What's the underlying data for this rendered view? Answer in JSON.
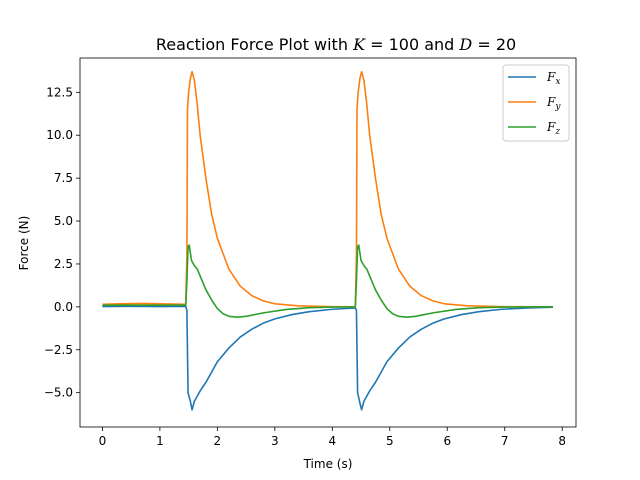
{
  "chart_data": {
    "type": "line",
    "title": "Reaction Force Plot with K = 100 and D = 20",
    "title_parts": {
      "prefix": "Reaction Force Plot with ",
      "k_sym": "K",
      "k_val": " = 100 and ",
      "d_sym": "D",
      "d_val": " = 20"
    },
    "xlabel": "Time (s)",
    "ylabel": "Force (N)",
    "xlim": [
      -0.39,
      8.24
    ],
    "ylim": [
      -7.0,
      14.5
    ],
    "xticks": [
      0,
      1,
      2,
      3,
      4,
      5,
      6,
      7,
      8
    ],
    "xtick_labels": [
      "0",
      "1",
      "2",
      "3",
      "4",
      "5",
      "6",
      "7",
      "8"
    ],
    "yticks": [
      -5.0,
      -2.5,
      0.0,
      2.5,
      5.0,
      7.5,
      10.0,
      12.5
    ],
    "ytick_labels": [
      "−5.0",
      "−2.5",
      "0.0",
      "2.5",
      "5.0",
      "7.5",
      "10.0",
      "12.5"
    ],
    "grid": false,
    "legend_position": "top-right",
    "series": [
      {
        "name": "Fx",
        "label_main": "F",
        "label_sub": "x",
        "color": "#1f77b4",
        "points": [
          [
            0,
            0.02
          ],
          [
            0.5,
            0.03
          ],
          [
            1.0,
            0.02
          ],
          [
            1.45,
            0.03
          ],
          [
            1.47,
            -0.2
          ],
          [
            1.49,
            -5.0
          ],
          [
            1.53,
            -5.5
          ],
          [
            1.56,
            -6.0
          ],
          [
            1.6,
            -5.5
          ],
          [
            1.65,
            -5.2
          ],
          [
            1.7,
            -4.9
          ],
          [
            1.8,
            -4.4
          ],
          [
            1.9,
            -3.8
          ],
          [
            2.0,
            -3.2
          ],
          [
            2.2,
            -2.4
          ],
          [
            2.4,
            -1.75
          ],
          [
            2.6,
            -1.3
          ],
          [
            2.8,
            -0.95
          ],
          [
            3.0,
            -0.7
          ],
          [
            3.3,
            -0.45
          ],
          [
            3.6,
            -0.28
          ],
          [
            4.0,
            -0.14
          ],
          [
            4.4,
            -0.06
          ],
          [
            4.42,
            -0.2
          ],
          [
            4.44,
            -5.0
          ],
          [
            4.48,
            -5.6
          ],
          [
            4.51,
            -6.0
          ],
          [
            4.55,
            -5.5
          ],
          [
            4.6,
            -5.2
          ],
          [
            4.65,
            -4.9
          ],
          [
            4.75,
            -4.4
          ],
          [
            4.85,
            -3.8
          ],
          [
            4.95,
            -3.2
          ],
          [
            5.15,
            -2.4
          ],
          [
            5.35,
            -1.75
          ],
          [
            5.55,
            -1.3
          ],
          [
            5.75,
            -0.95
          ],
          [
            5.95,
            -0.7
          ],
          [
            6.25,
            -0.45
          ],
          [
            6.55,
            -0.28
          ],
          [
            6.95,
            -0.14
          ],
          [
            7.4,
            -0.06
          ],
          [
            7.84,
            -0.02
          ]
        ]
      },
      {
        "name": "Fy",
        "label_main": "F",
        "label_sub": "y",
        "color": "#ff7f0e",
        "points": [
          [
            0,
            0.15
          ],
          [
            0.3,
            0.18
          ],
          [
            0.7,
            0.2
          ],
          [
            1.0,
            0.18
          ],
          [
            1.45,
            0.15
          ],
          [
            1.47,
            3.0
          ],
          [
            1.48,
            11.5
          ],
          [
            1.5,
            12.5
          ],
          [
            1.53,
            13.3
          ],
          [
            1.56,
            13.7
          ],
          [
            1.6,
            13.2
          ],
          [
            1.65,
            11.8
          ],
          [
            1.7,
            10.0
          ],
          [
            1.8,
            7.5
          ],
          [
            1.9,
            5.4
          ],
          [
            2.0,
            4.0
          ],
          [
            2.2,
            2.2
          ],
          [
            2.4,
            1.2
          ],
          [
            2.6,
            0.65
          ],
          [
            2.8,
            0.35
          ],
          [
            3.0,
            0.18
          ],
          [
            3.4,
            0.06
          ],
          [
            4.0,
            0.01
          ],
          [
            4.4,
            0.0
          ],
          [
            4.42,
            3.0
          ],
          [
            4.43,
            11.5
          ],
          [
            4.45,
            12.5
          ],
          [
            4.48,
            13.3
          ],
          [
            4.51,
            13.7
          ],
          [
            4.55,
            13.2
          ],
          [
            4.6,
            11.8
          ],
          [
            4.65,
            10.0
          ],
          [
            4.75,
            7.5
          ],
          [
            4.85,
            5.4
          ],
          [
            4.95,
            4.0
          ],
          [
            5.15,
            2.2
          ],
          [
            5.35,
            1.2
          ],
          [
            5.55,
            0.65
          ],
          [
            5.75,
            0.35
          ],
          [
            5.95,
            0.18
          ],
          [
            6.35,
            0.06
          ],
          [
            7.0,
            0.01
          ],
          [
            7.84,
            0.0
          ]
        ]
      },
      {
        "name": "Fz",
        "label_main": "F",
        "label_sub": "z",
        "color": "#2ca02c",
        "points": [
          [
            0,
            0.1
          ],
          [
            0.5,
            0.1
          ],
          [
            1.0,
            0.1
          ],
          [
            1.45,
            0.1
          ],
          [
            1.47,
            1.5
          ],
          [
            1.49,
            3.5
          ],
          [
            1.51,
            3.6
          ],
          [
            1.55,
            2.7
          ],
          [
            1.6,
            2.4
          ],
          [
            1.65,
            2.2
          ],
          [
            1.7,
            1.8
          ],
          [
            1.8,
            1.0
          ],
          [
            1.9,
            0.4
          ],
          [
            2.0,
            -0.1
          ],
          [
            2.1,
            -0.4
          ],
          [
            2.2,
            -0.55
          ],
          [
            2.35,
            -0.6
          ],
          [
            2.5,
            -0.55
          ],
          [
            2.8,
            -0.35
          ],
          [
            3.2,
            -0.15
          ],
          [
            3.6,
            -0.05
          ],
          [
            4.0,
            -0.01
          ],
          [
            4.4,
            0.0
          ],
          [
            4.42,
            1.5
          ],
          [
            4.44,
            3.5
          ],
          [
            4.46,
            3.6
          ],
          [
            4.5,
            2.7
          ],
          [
            4.55,
            2.4
          ],
          [
            4.6,
            2.2
          ],
          [
            4.65,
            1.8
          ],
          [
            4.75,
            1.0
          ],
          [
            4.85,
            0.4
          ],
          [
            4.95,
            -0.1
          ],
          [
            5.05,
            -0.4
          ],
          [
            5.15,
            -0.55
          ],
          [
            5.3,
            -0.6
          ],
          [
            5.45,
            -0.55
          ],
          [
            5.75,
            -0.35
          ],
          [
            6.15,
            -0.15
          ],
          [
            6.55,
            -0.05
          ],
          [
            7.0,
            -0.01
          ],
          [
            7.84,
            0.0
          ]
        ]
      }
    ]
  }
}
